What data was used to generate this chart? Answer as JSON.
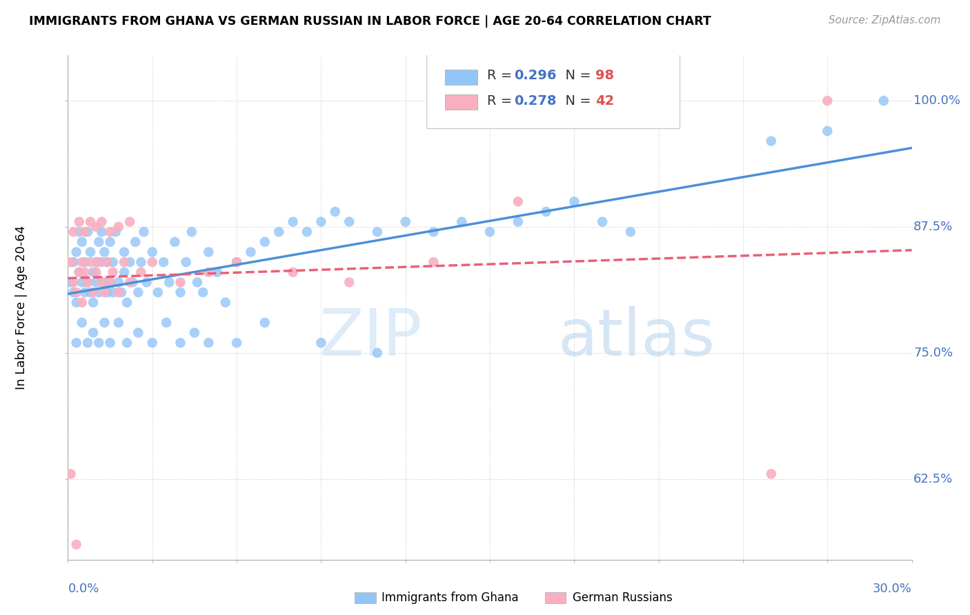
{
  "title": "IMMIGRANTS FROM GHANA VS GERMAN RUSSIAN IN LABOR FORCE | AGE 20-64 CORRELATION CHART",
  "source": "Source: ZipAtlas.com",
  "ylabel": "In Labor Force | Age 20-64",
  "ytick_vals": [
    0.625,
    0.75,
    0.875,
    1.0
  ],
  "ytick_labels": [
    "62.5%",
    "75.0%",
    "87.5%",
    "100.0%"
  ],
  "xmin": 0.0,
  "xmax": 0.3,
  "ymin": 0.545,
  "ymax": 1.045,
  "R_ghana": 0.296,
  "N_ghana": 98,
  "R_german": 0.278,
  "N_german": 42,
  "color_ghana": "#92c5f7",
  "color_german": "#f9afc0",
  "color_reg_ghana": "#4a90d9",
  "color_reg_german": "#e8607a",
  "legend_label_ghana": "Immigrants from Ghana",
  "legend_label_german": "German Russians",
  "watermark_zip": "ZIP",
  "watermark_atlas": "atlas",
  "ghana_x": [
    0.001,
    0.002,
    0.002,
    0.003,
    0.003,
    0.004,
    0.004,
    0.005,
    0.005,
    0.006,
    0.006,
    0.007,
    0.007,
    0.008,
    0.008,
    0.009,
    0.009,
    0.01,
    0.01,
    0.011,
    0.011,
    0.012,
    0.012,
    0.013,
    0.013,
    0.014,
    0.014,
    0.015,
    0.015,
    0.016,
    0.016,
    0.017,
    0.018,
    0.019,
    0.02,
    0.02,
    0.021,
    0.022,
    0.023,
    0.024,
    0.025,
    0.026,
    0.027,
    0.028,
    0.03,
    0.032,
    0.034,
    0.036,
    0.038,
    0.04,
    0.042,
    0.044,
    0.046,
    0.048,
    0.05,
    0.053,
    0.056,
    0.06,
    0.065,
    0.07,
    0.075,
    0.08,
    0.085,
    0.09,
    0.095,
    0.1,
    0.11,
    0.12,
    0.13,
    0.14,
    0.15,
    0.16,
    0.17,
    0.18,
    0.19,
    0.2,
    0.003,
    0.005,
    0.007,
    0.009,
    0.011,
    0.013,
    0.015,
    0.018,
    0.021,
    0.025,
    0.03,
    0.035,
    0.04,
    0.045,
    0.05,
    0.06,
    0.07,
    0.09,
    0.11,
    0.25,
    0.27,
    0.29
  ],
  "ghana_y": [
    0.82,
    0.84,
    0.81,
    0.85,
    0.8,
    0.83,
    0.87,
    0.82,
    0.86,
    0.81,
    0.84,
    0.82,
    0.87,
    0.81,
    0.85,
    0.83,
    0.8,
    0.84,
    0.82,
    0.86,
    0.81,
    0.84,
    0.87,
    0.82,
    0.85,
    0.81,
    0.84,
    0.82,
    0.86,
    0.81,
    0.84,
    0.87,
    0.82,
    0.81,
    0.85,
    0.83,
    0.8,
    0.84,
    0.82,
    0.86,
    0.81,
    0.84,
    0.87,
    0.82,
    0.85,
    0.81,
    0.84,
    0.82,
    0.86,
    0.81,
    0.84,
    0.87,
    0.82,
    0.81,
    0.85,
    0.83,
    0.8,
    0.84,
    0.85,
    0.86,
    0.87,
    0.88,
    0.87,
    0.88,
    0.89,
    0.88,
    0.87,
    0.88,
    0.87,
    0.88,
    0.87,
    0.88,
    0.89,
    0.9,
    0.88,
    0.87,
    0.76,
    0.78,
    0.76,
    0.77,
    0.76,
    0.78,
    0.76,
    0.78,
    0.76,
    0.77,
    0.76,
    0.78,
    0.76,
    0.77,
    0.76,
    0.76,
    0.78,
    0.76,
    0.75,
    0.96,
    0.97,
    1.0
  ],
  "german_x": [
    0.001,
    0.002,
    0.003,
    0.004,
    0.005,
    0.005,
    0.006,
    0.007,
    0.008,
    0.009,
    0.01,
    0.011,
    0.012,
    0.013,
    0.014,
    0.015,
    0.016,
    0.018,
    0.02,
    0.022,
    0.002,
    0.004,
    0.006,
    0.008,
    0.01,
    0.012,
    0.015,
    0.018,
    0.022,
    0.026,
    0.03,
    0.04,
    0.05,
    0.06,
    0.08,
    0.1,
    0.13,
    0.16,
    0.25,
    0.001,
    0.003,
    0.27
  ],
  "german_y": [
    0.84,
    0.82,
    0.81,
    0.83,
    0.84,
    0.8,
    0.83,
    0.82,
    0.84,
    0.81,
    0.83,
    0.84,
    0.82,
    0.81,
    0.84,
    0.82,
    0.83,
    0.81,
    0.84,
    0.82,
    0.87,
    0.88,
    0.87,
    0.88,
    0.875,
    0.88,
    0.87,
    0.875,
    0.88,
    0.83,
    0.84,
    0.82,
    0.83,
    0.84,
    0.83,
    0.82,
    0.84,
    0.9,
    0.63,
    0.63,
    0.56,
    1.0
  ]
}
